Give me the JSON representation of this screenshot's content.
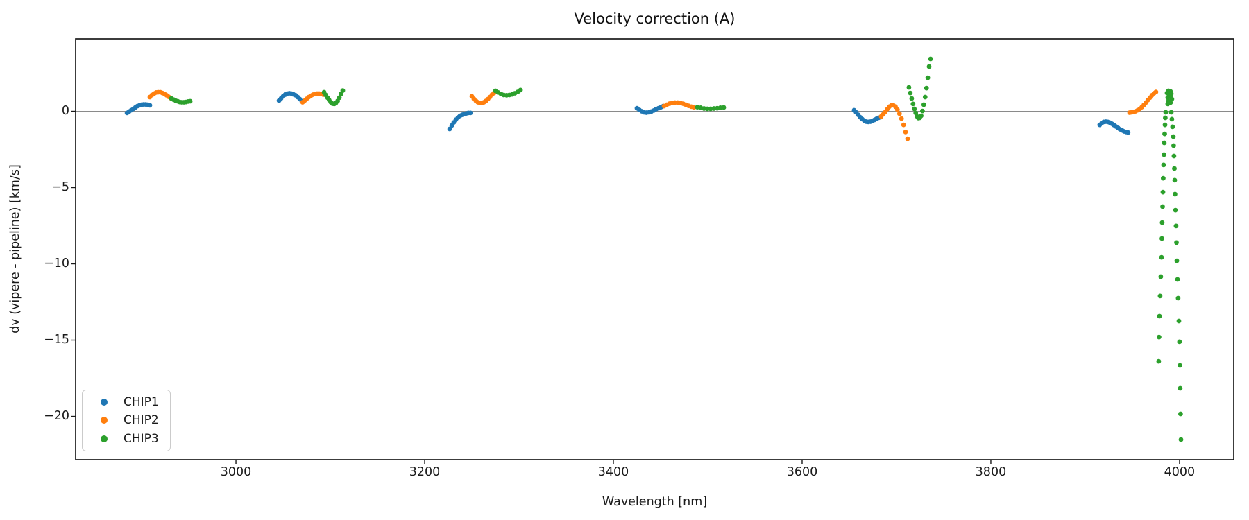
{
  "chart_data": {
    "type": "scatter",
    "title": "Velocity correction (A)",
    "xlabel": "Wavelength [nm]",
    "ylabel": "dv (vipere - pipeline) [km/s]",
    "xlim": [
      2830.1,
      4057.4
    ],
    "ylim": [
      -22.84,
      4.75
    ],
    "grid": false,
    "hline": 0,
    "xticks": [
      {
        "value": 3000,
        "label": "3000"
      },
      {
        "value": 3200,
        "label": "3200"
      },
      {
        "value": 3400,
        "label": "3400"
      },
      {
        "value": 3600,
        "label": "3600"
      },
      {
        "value": 3800,
        "label": "3800"
      },
      {
        "value": 4000,
        "label": "4000"
      }
    ],
    "yticks": [
      {
        "value": 0,
        "label": "0"
      },
      {
        "value": -5,
        "label": "−5"
      },
      {
        "value": -10,
        "label": "−10"
      },
      {
        "value": -15,
        "label": "−15"
      },
      {
        "value": -20,
        "label": "−20"
      }
    ],
    "legend": {
      "position": "lower left"
    },
    "series": [
      {
        "name": "CHIP1",
        "color": "#1f77b4",
        "points": [
          [
            2884.6,
            -0.11
          ],
          [
            2886.8,
            -0.02
          ],
          [
            2889.0,
            0.07
          ],
          [
            2891.2,
            0.16
          ],
          [
            2893.4,
            0.25
          ],
          [
            2895.6,
            0.34
          ],
          [
            2897.8,
            0.39
          ],
          [
            2900.0,
            0.43
          ],
          [
            2902.2,
            0.45
          ],
          [
            2904.4,
            0.45
          ],
          [
            2906.6,
            0.43
          ],
          [
            2908.8,
            0.39
          ],
          [
            3045.6,
            0.7
          ],
          [
            3047.8,
            0.84
          ],
          [
            3050.0,
            0.98
          ],
          [
            3052.2,
            1.09
          ],
          [
            3054.4,
            1.16
          ],
          [
            3056.6,
            1.18
          ],
          [
            3058.8,
            1.16
          ],
          [
            3061.0,
            1.11
          ],
          [
            3063.2,
            1.05
          ],
          [
            3065.4,
            0.93
          ],
          [
            3067.6,
            0.8
          ],
          [
            3069.8,
            0.66
          ],
          [
            3226.5,
            -1.16
          ],
          [
            3228.7,
            -0.93
          ],
          [
            3230.9,
            -0.73
          ],
          [
            3233.1,
            -0.55
          ],
          [
            3235.3,
            -0.41
          ],
          [
            3237.5,
            -0.3
          ],
          [
            3239.7,
            -0.23
          ],
          [
            3241.9,
            -0.18
          ],
          [
            3244.1,
            -0.14
          ],
          [
            3246.3,
            -0.11
          ],
          [
            3248.5,
            -0.11
          ],
          [
            3425.0,
            0.2
          ],
          [
            3427.5,
            0.09
          ],
          [
            3430.1,
            0.0
          ],
          [
            3432.6,
            -0.07
          ],
          [
            3435.1,
            -0.09
          ],
          [
            3437.7,
            -0.07
          ],
          [
            3440.2,
            -0.02
          ],
          [
            3442.8,
            0.05
          ],
          [
            3445.3,
            0.14
          ],
          [
            3447.8,
            0.2
          ],
          [
            3450.4,
            0.27
          ],
          [
            3452.9,
            0.34
          ],
          [
            3655.1,
            0.07
          ],
          [
            3657.2,
            -0.07
          ],
          [
            3659.4,
            -0.23
          ],
          [
            3661.5,
            -0.39
          ],
          [
            3663.7,
            -0.52
          ],
          [
            3665.8,
            -0.61
          ],
          [
            3668.0,
            -0.68
          ],
          [
            3670.1,
            -0.7
          ],
          [
            3672.3,
            -0.68
          ],
          [
            3674.4,
            -0.64
          ],
          [
            3676.6,
            -0.57
          ],
          [
            3678.7,
            -0.5
          ],
          [
            3680.9,
            -0.43
          ],
          [
            3683.0,
            -0.39
          ],
          [
            3915.4,
            -0.89
          ],
          [
            3917.6,
            -0.77
          ],
          [
            3919.7,
            -0.7
          ],
          [
            3921.9,
            -0.68
          ],
          [
            3924.0,
            -0.7
          ],
          [
            3926.2,
            -0.75
          ],
          [
            3928.3,
            -0.82
          ],
          [
            3930.5,
            -0.91
          ],
          [
            3932.6,
            -1.0
          ],
          [
            3934.8,
            -1.09
          ],
          [
            3936.9,
            -1.18
          ],
          [
            3939.1,
            -1.25
          ],
          [
            3941.2,
            -1.32
          ],
          [
            3943.4,
            -1.36
          ],
          [
            3945.5,
            -1.39
          ]
        ]
      },
      {
        "name": "CHIP2",
        "color": "#ff7f0e",
        "points": [
          [
            2908.8,
            0.93
          ],
          [
            2911.0,
            1.07
          ],
          [
            2913.2,
            1.16
          ],
          [
            2915.4,
            1.23
          ],
          [
            2917.6,
            1.25
          ],
          [
            2919.8,
            1.25
          ],
          [
            2922.0,
            1.2
          ],
          [
            2924.2,
            1.14
          ],
          [
            2926.4,
            1.05
          ],
          [
            2928.7,
            0.95
          ],
          [
            2930.9,
            0.86
          ],
          [
            3070.6,
            0.59
          ],
          [
            3072.8,
            0.7
          ],
          [
            3075.0,
            0.82
          ],
          [
            3077.2,
            0.93
          ],
          [
            3079.4,
            1.02
          ],
          [
            3081.6,
            1.09
          ],
          [
            3083.8,
            1.14
          ],
          [
            3086.0,
            1.16
          ],
          [
            3088.2,
            1.16
          ],
          [
            3090.4,
            1.14
          ],
          [
            3092.6,
            1.09
          ],
          [
            3250.0,
            0.98
          ],
          [
            3252.1,
            0.82
          ],
          [
            3254.3,
            0.68
          ],
          [
            3256.4,
            0.59
          ],
          [
            3258.5,
            0.55
          ],
          [
            3260.7,
            0.55
          ],
          [
            3262.8,
            0.59
          ],
          [
            3265.0,
            0.68
          ],
          [
            3267.1,
            0.8
          ],
          [
            3269.2,
            0.93
          ],
          [
            3271.4,
            1.09
          ],
          [
            3273.5,
            1.2
          ],
          [
            3453.7,
            0.34
          ],
          [
            3456.6,
            0.43
          ],
          [
            3459.5,
            0.5
          ],
          [
            3462.3,
            0.55
          ],
          [
            3465.2,
            0.57
          ],
          [
            3468.1,
            0.57
          ],
          [
            3471.0,
            0.55
          ],
          [
            3473.8,
            0.5
          ],
          [
            3476.7,
            0.43
          ],
          [
            3479.6,
            0.36
          ],
          [
            3482.5,
            0.3
          ],
          [
            3485.3,
            0.25
          ],
          [
            3683.8,
            -0.34
          ],
          [
            3686.0,
            -0.2
          ],
          [
            3688.1,
            -0.05
          ],
          [
            3690.3,
            0.14
          ],
          [
            3692.4,
            0.3
          ],
          [
            3694.6,
            0.39
          ],
          [
            3696.7,
            0.39
          ],
          [
            3698.9,
            0.3
          ],
          [
            3701.0,
            0.11
          ],
          [
            3703.2,
            -0.16
          ],
          [
            3705.3,
            -0.48
          ],
          [
            3707.5,
            -0.89
          ],
          [
            3709.6,
            -1.36
          ],
          [
            3711.8,
            -1.8
          ],
          [
            3947.1,
            -0.09
          ],
          [
            3949.2,
            -0.07
          ],
          [
            3951.4,
            -0.05
          ],
          [
            3953.5,
            0.0
          ],
          [
            3955.7,
            0.07
          ],
          [
            3957.8,
            0.16
          ],
          [
            3960.0,
            0.27
          ],
          [
            3962.1,
            0.41
          ],
          [
            3964.3,
            0.57
          ],
          [
            3966.4,
            0.73
          ],
          [
            3968.6,
            0.89
          ],
          [
            3970.7,
            1.05
          ],
          [
            3972.9,
            1.18
          ],
          [
            3975.0,
            1.27
          ]
        ]
      },
      {
        "name": "CHIP3",
        "color": "#2ca02c",
        "points": [
          [
            2931.6,
            0.84
          ],
          [
            2933.8,
            0.77
          ],
          [
            2936.0,
            0.7
          ],
          [
            2938.2,
            0.66
          ],
          [
            2940.4,
            0.61
          ],
          [
            2942.6,
            0.59
          ],
          [
            2944.9,
            0.59
          ],
          [
            2947.1,
            0.61
          ],
          [
            2949.3,
            0.64
          ],
          [
            2951.5,
            0.66
          ],
          [
            3093.4,
            1.25
          ],
          [
            3095.2,
            1.07
          ],
          [
            3097.0,
            0.89
          ],
          [
            3098.8,
            0.73
          ],
          [
            3100.6,
            0.59
          ],
          [
            3102.4,
            0.5
          ],
          [
            3104.2,
            0.48
          ],
          [
            3106.0,
            0.55
          ],
          [
            3107.8,
            0.68
          ],
          [
            3109.6,
            0.89
          ],
          [
            3111.4,
            1.14
          ],
          [
            3113.2,
            1.36
          ],
          [
            3275.0,
            1.34
          ],
          [
            3277.9,
            1.23
          ],
          [
            3280.9,
            1.14
          ],
          [
            3283.8,
            1.07
          ],
          [
            3286.8,
            1.05
          ],
          [
            3289.7,
            1.07
          ],
          [
            3292.6,
            1.11
          ],
          [
            3295.6,
            1.18
          ],
          [
            3298.5,
            1.27
          ],
          [
            3301.5,
            1.39
          ],
          [
            3489.0,
            0.27
          ],
          [
            3492.5,
            0.23
          ],
          [
            3496.0,
            0.18
          ],
          [
            3499.5,
            0.16
          ],
          [
            3503.0,
            0.16
          ],
          [
            3506.5,
            0.18
          ],
          [
            3510.0,
            0.2
          ],
          [
            3513.4,
            0.23
          ],
          [
            3516.9,
            0.25
          ],
          [
            3713.2,
            1.57
          ],
          [
            3714.6,
            1.2
          ],
          [
            3716.1,
            0.84
          ],
          [
            3717.5,
            0.48
          ],
          [
            3718.9,
            0.16
          ],
          [
            3720.4,
            -0.11
          ],
          [
            3721.8,
            -0.34
          ],
          [
            3723.2,
            -0.45
          ],
          [
            3724.6,
            -0.43
          ],
          [
            3726.1,
            -0.3
          ],
          [
            3727.5,
            0.02
          ],
          [
            3728.9,
            0.43
          ],
          [
            3730.4,
            0.93
          ],
          [
            3731.8,
            1.52
          ],
          [
            3733.2,
            2.2
          ],
          [
            3734.6,
            2.93
          ],
          [
            3736.1,
            3.43
          ],
          [
            3988.2,
            1.34
          ],
          [
            3990.4,
            1.3
          ],
          [
            3986.8,
            1.2
          ],
          [
            3991.2,
            1.16
          ],
          [
            3989.0,
            1.07
          ],
          [
            3990.4,
            0.98
          ],
          [
            3987.5,
            0.89
          ],
          [
            3991.9,
            0.8
          ],
          [
            3988.2,
            0.66
          ],
          [
            3990.4,
            0.57
          ],
          [
            3987.5,
            0.48
          ],
          [
            3985.3,
            -0.07
          ],
          [
            3984.9,
            -0.43
          ],
          [
            3984.6,
            -0.89
          ],
          [
            3984.2,
            -1.48
          ],
          [
            3983.8,
            -2.07
          ],
          [
            3983.5,
            -2.84
          ],
          [
            3983.1,
            -3.52
          ],
          [
            3982.7,
            -4.39
          ],
          [
            3982.4,
            -5.3
          ],
          [
            3982.0,
            -6.25
          ],
          [
            3981.6,
            -7.3
          ],
          [
            3981.3,
            -8.34
          ],
          [
            3980.9,
            -9.57
          ],
          [
            3980.1,
            -10.84
          ],
          [
            3979.4,
            -12.11
          ],
          [
            3978.7,
            -13.43
          ],
          [
            3978.3,
            -14.8
          ],
          [
            3977.9,
            -16.39
          ],
          [
            3991.2,
            -0.07
          ],
          [
            3991.9,
            -0.52
          ],
          [
            3992.6,
            -1.02
          ],
          [
            3993.4,
            -1.66
          ],
          [
            3993.7,
            -2.25
          ],
          [
            3994.1,
            -2.93
          ],
          [
            3994.5,
            -3.75
          ],
          [
            3994.9,
            -4.52
          ],
          [
            3995.2,
            -5.43
          ],
          [
            3995.6,
            -6.48
          ],
          [
            3996.3,
            -7.52
          ],
          [
            3996.7,
            -8.61
          ],
          [
            3997.1,
            -9.8
          ],
          [
            3997.8,
            -11.02
          ],
          [
            3998.5,
            -12.25
          ],
          [
            3999.3,
            -13.75
          ],
          [
            4000.0,
            -15.11
          ],
          [
            4000.4,
            -16.66
          ],
          [
            4000.7,
            -18.16
          ],
          [
            4001.1,
            -19.84
          ],
          [
            4001.5,
            -21.52
          ]
        ]
      }
    ]
  }
}
